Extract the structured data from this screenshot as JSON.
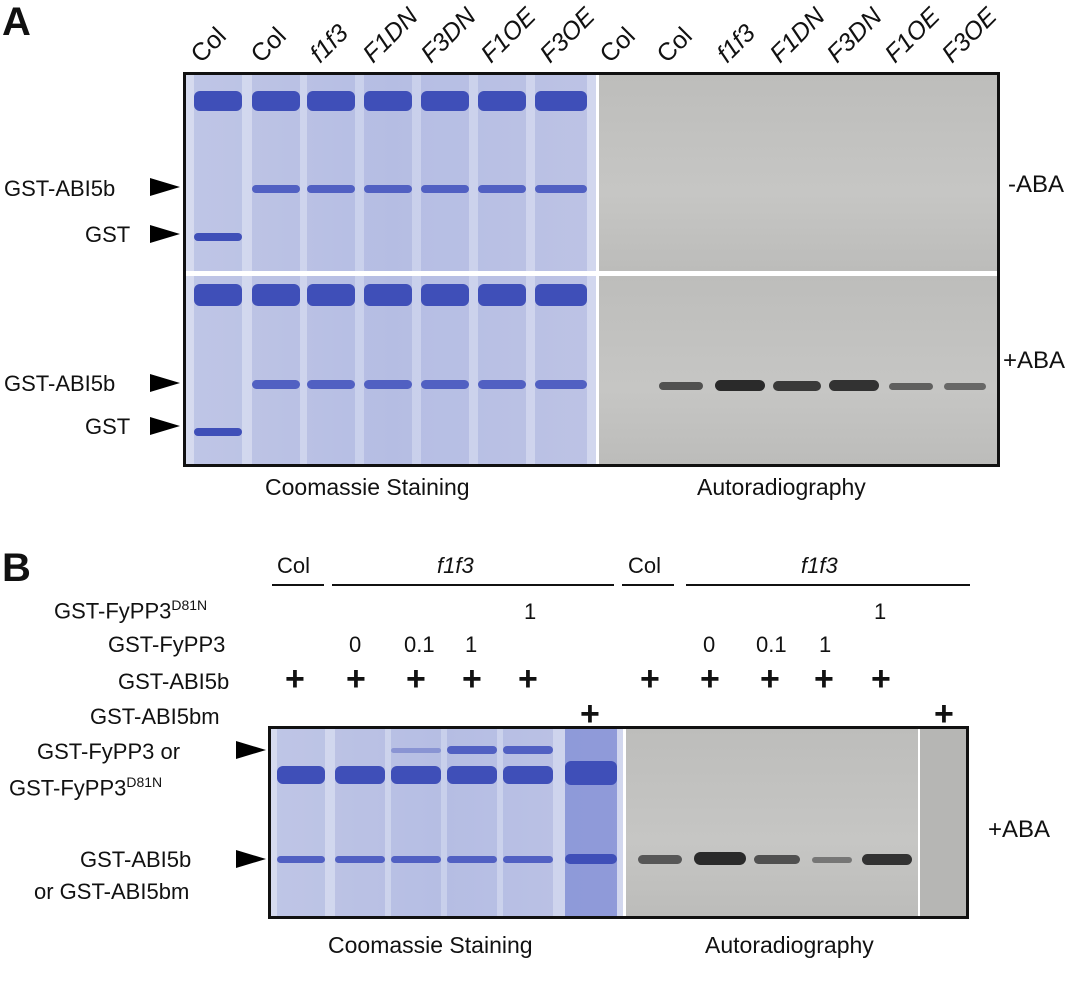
{
  "panelA": {
    "letter": "A",
    "lanes_coomassie": [
      "Col",
      "Col",
      "f1f3",
      "F1DN",
      "F3DN",
      "F1OE",
      "F3OE"
    ],
    "lanes_auto": [
      "Col",
      "Col",
      "f1f3",
      "F1DN",
      "F3DN",
      "F1OE",
      "F3OE"
    ],
    "left_labels_top": [
      "GST-ABI5b",
      "GST"
    ],
    "left_labels_bottom": [
      "GST-ABI5b",
      "GST"
    ],
    "right_label_top": "-ABA",
    "right_label_bottom": "+ABA",
    "caption_left": "Coomassie Staining",
    "caption_right": "Autoradiography"
  },
  "panelB": {
    "letter": "B",
    "groups_left": [
      "Col",
      "f1f3"
    ],
    "groups_right": [
      "Col",
      "f1f3"
    ],
    "row_labels": {
      "d81n_base": "GST-FyPP3",
      "d81n_sup": "D81N",
      "fypp3": "GST-FyPP3",
      "abi5b": "GST-ABI5b",
      "abi5bm": "GST-ABI5bm"
    },
    "d81n_value": "1",
    "fypp3_values": [
      "0",
      "0.1",
      "1"
    ],
    "plus": "+",
    "gel_label_1a": "GST-FyPP3 or",
    "gel_label_1b_base": "GST-FyPP3",
    "gel_label_1b_sup": "D81N",
    "gel_label_2a": "GST-ABI5b",
    "gel_label_2b": "or GST-ABI5bm",
    "right_label": "+ABA",
    "caption_left": "Coomassie Staining",
    "caption_right": "Autoradiography"
  }
}
